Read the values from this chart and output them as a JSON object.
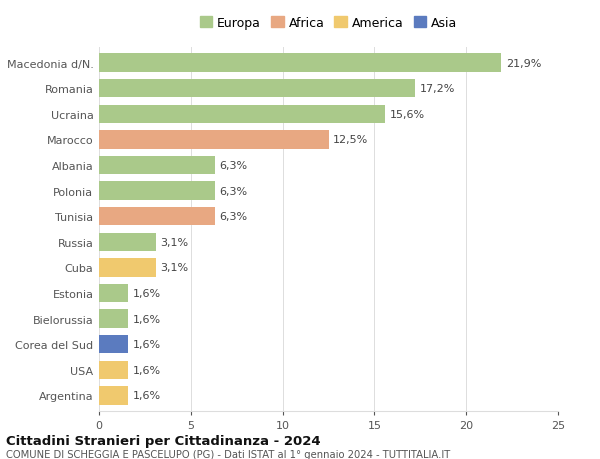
{
  "countries": [
    "Macedonia d/N.",
    "Romania",
    "Ucraina",
    "Marocco",
    "Albania",
    "Polonia",
    "Tunisia",
    "Russia",
    "Cuba",
    "Estonia",
    "Bielorussia",
    "Corea del Sud",
    "USA",
    "Argentina"
  ],
  "values": [
    21.9,
    17.2,
    15.6,
    12.5,
    6.3,
    6.3,
    6.3,
    3.1,
    3.1,
    1.6,
    1.6,
    1.6,
    1.6,
    1.6
  ],
  "labels": [
    "21,9%",
    "17,2%",
    "15,6%",
    "12,5%",
    "6,3%",
    "6,3%",
    "6,3%",
    "3,1%",
    "3,1%",
    "1,6%",
    "1,6%",
    "1,6%",
    "1,6%",
    "1,6%"
  ],
  "continents": [
    "Europa",
    "Europa",
    "Europa",
    "Africa",
    "Europa",
    "Europa",
    "Africa",
    "Europa",
    "America",
    "Europa",
    "Europa",
    "Asia",
    "America",
    "America"
  ],
  "colors": {
    "Europa": "#aac98a",
    "Africa": "#e8a882",
    "America": "#f0c96e",
    "Asia": "#5b7bbf"
  },
  "xlim": [
    0,
    25
  ],
  "xticks": [
    0,
    5,
    10,
    15,
    20,
    25
  ],
  "title": "Cittadini Stranieri per Cittadinanza - 2024",
  "subtitle": "COMUNE DI SCHEGGIA E PASCELUPO (PG) - Dati ISTAT al 1° gennaio 2024 - TUTTITALIA.IT",
  "background_color": "#ffffff",
  "grid_color": "#dddddd",
  "bar_height": 0.72,
  "legend_order": [
    "Europa",
    "Africa",
    "America",
    "Asia"
  ],
  "label_fontsize": 8,
  "ytick_fontsize": 8,
  "xtick_fontsize": 8
}
